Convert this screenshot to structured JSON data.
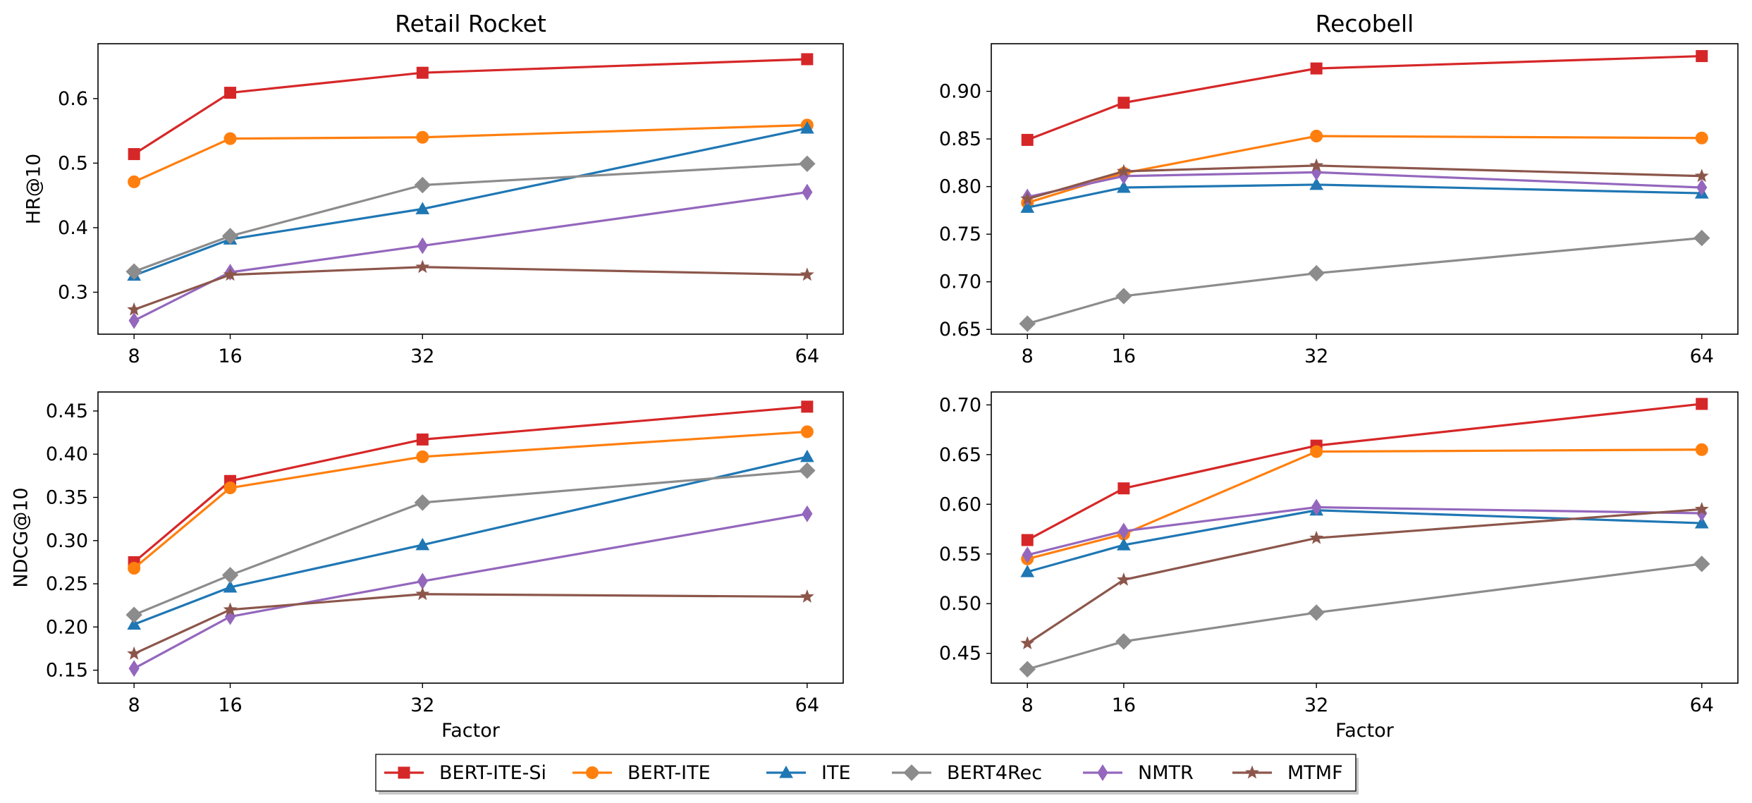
{
  "legend": {
    "placement": "bottom-center",
    "entries": [
      {
        "name": "BERT-ITE-Si",
        "color": "#d62728",
        "marker": "square"
      },
      {
        "name": "BERT-ITE",
        "color": "#ff7f0e",
        "marker": "circle"
      },
      {
        "name": "ITE",
        "color": "#1f77b4",
        "marker": "triangle"
      },
      {
        "name": "BERT4Rec",
        "color": "#8c8c8c",
        "marker": "diamond"
      },
      {
        "name": "NMTR",
        "color": "#9467bd",
        "marker": "thin-diamond"
      },
      {
        "name": "MTMF",
        "color": "#8c564b",
        "marker": "star"
      }
    ]
  },
  "chart_data": [
    {
      "type": "line",
      "title": "Retail Rocket",
      "xlabel": "",
      "ylabel": "HR@10",
      "x": [
        8,
        16,
        32,
        64
      ],
      "xticks": [
        "8",
        "16",
        "32",
        "64"
      ],
      "xlim": [
        5,
        67
      ],
      "ylim": [
        0.235,
        0.685
      ],
      "yticks": [
        0.3,
        0.4,
        0.5,
        0.6
      ],
      "ytick_labels": [
        "0.3",
        "0.4",
        "0.5",
        "0.6"
      ],
      "grid": false,
      "series": [
        {
          "name": "BERT-ITE-Si",
          "values": [
            0.514,
            0.609,
            0.64,
            0.661
          ]
        },
        {
          "name": "BERT-ITE",
          "values": [
            0.471,
            0.538,
            0.54,
            0.559
          ]
        },
        {
          "name": "ITE",
          "values": [
            0.326,
            0.382,
            0.429,
            0.554
          ]
        },
        {
          "name": "BERT4Rec",
          "values": [
            0.332,
            0.387,
            0.466,
            0.499
          ]
        },
        {
          "name": "NMTR",
          "values": [
            0.256,
            0.331,
            0.372,
            0.455
          ]
        },
        {
          "name": "MTMF",
          "values": [
            0.273,
            0.327,
            0.339,
            0.327
          ]
        }
      ]
    },
    {
      "type": "line",
      "title": "Recobell",
      "xlabel": "",
      "ylabel": "",
      "x": [
        8,
        16,
        32,
        64
      ],
      "xticks": [
        "8",
        "16",
        "32",
        "64"
      ],
      "xlim": [
        5,
        67
      ],
      "ylim": [
        0.645,
        0.95
      ],
      "yticks": [
        0.65,
        0.7,
        0.75,
        0.8,
        0.85,
        0.9
      ],
      "ytick_labels": [
        "0.65",
        "0.70",
        "0.75",
        "0.80",
        "0.85",
        "0.90"
      ],
      "grid": false,
      "series": [
        {
          "name": "BERT-ITE-Si",
          "values": [
            0.849,
            0.888,
            0.924,
            0.937
          ]
        },
        {
          "name": "BERT-ITE",
          "values": [
            0.783,
            0.814,
            0.853,
            0.851
          ]
        },
        {
          "name": "ITE",
          "values": [
            0.778,
            0.799,
            0.802,
            0.793
          ]
        },
        {
          "name": "BERT4Rec",
          "values": [
            0.656,
            0.685,
            0.709,
            0.746
          ]
        },
        {
          "name": "NMTR",
          "values": [
            0.789,
            0.811,
            0.815,
            0.799
          ]
        },
        {
          "name": "MTMF",
          "values": [
            0.787,
            0.816,
            0.822,
            0.811
          ]
        }
      ]
    },
    {
      "type": "line",
      "title": "",
      "xlabel": "Factor",
      "ylabel": "NDCG@10",
      "x": [
        8,
        16,
        32,
        64
      ],
      "xticks": [
        "8",
        "16",
        "32",
        "64"
      ],
      "xlim": [
        5,
        67
      ],
      "ylim": [
        0.135,
        0.472
      ],
      "yticks": [
        0.15,
        0.2,
        0.25,
        0.3,
        0.35,
        0.4,
        0.45
      ],
      "ytick_labels": [
        "0.15",
        "0.20",
        "0.25",
        "0.30",
        "0.35",
        "0.40",
        "0.45"
      ],
      "grid": false,
      "series": [
        {
          "name": "BERT-ITE-Si",
          "values": [
            0.275,
            0.369,
            0.417,
            0.455
          ]
        },
        {
          "name": "BERT-ITE",
          "values": [
            0.268,
            0.361,
            0.397,
            0.426
          ]
        },
        {
          "name": "ITE",
          "values": [
            0.203,
            0.246,
            0.295,
            0.397
          ]
        },
        {
          "name": "BERT4Rec",
          "values": [
            0.214,
            0.26,
            0.344,
            0.381
          ]
        },
        {
          "name": "NMTR",
          "values": [
            0.152,
            0.212,
            0.253,
            0.331
          ]
        },
        {
          "name": "MTMF",
          "values": [
            0.169,
            0.22,
            0.238,
            0.235
          ]
        }
      ]
    },
    {
      "type": "line",
      "title": "",
      "xlabel": "Factor",
      "ylabel": "",
      "x": [
        8,
        16,
        32,
        64
      ],
      "xticks": [
        "8",
        "16",
        "32",
        "64"
      ],
      "xlim": [
        5,
        67
      ],
      "ylim": [
        0.42,
        0.713
      ],
      "yticks": [
        0.45,
        0.5,
        0.55,
        0.6,
        0.65,
        0.7
      ],
      "ytick_labels": [
        "0.45",
        "0.50",
        "0.55",
        "0.60",
        "0.65",
        "0.70"
      ],
      "grid": false,
      "series": [
        {
          "name": "BERT-ITE-Si",
          "values": [
            0.564,
            0.616,
            0.659,
            0.701
          ]
        },
        {
          "name": "BERT-ITE",
          "values": [
            0.545,
            0.57,
            0.653,
            0.655
          ]
        },
        {
          "name": "ITE",
          "values": [
            0.532,
            0.559,
            0.594,
            0.581
          ]
        },
        {
          "name": "BERT4Rec",
          "values": [
            0.434,
            0.462,
            0.491,
            0.54
          ]
        },
        {
          "name": "NMTR",
          "values": [
            0.549,
            0.573,
            0.597,
            0.591
          ]
        },
        {
          "name": "MTMF",
          "values": [
            0.46,
            0.524,
            0.566,
            0.595
          ]
        }
      ]
    }
  ]
}
